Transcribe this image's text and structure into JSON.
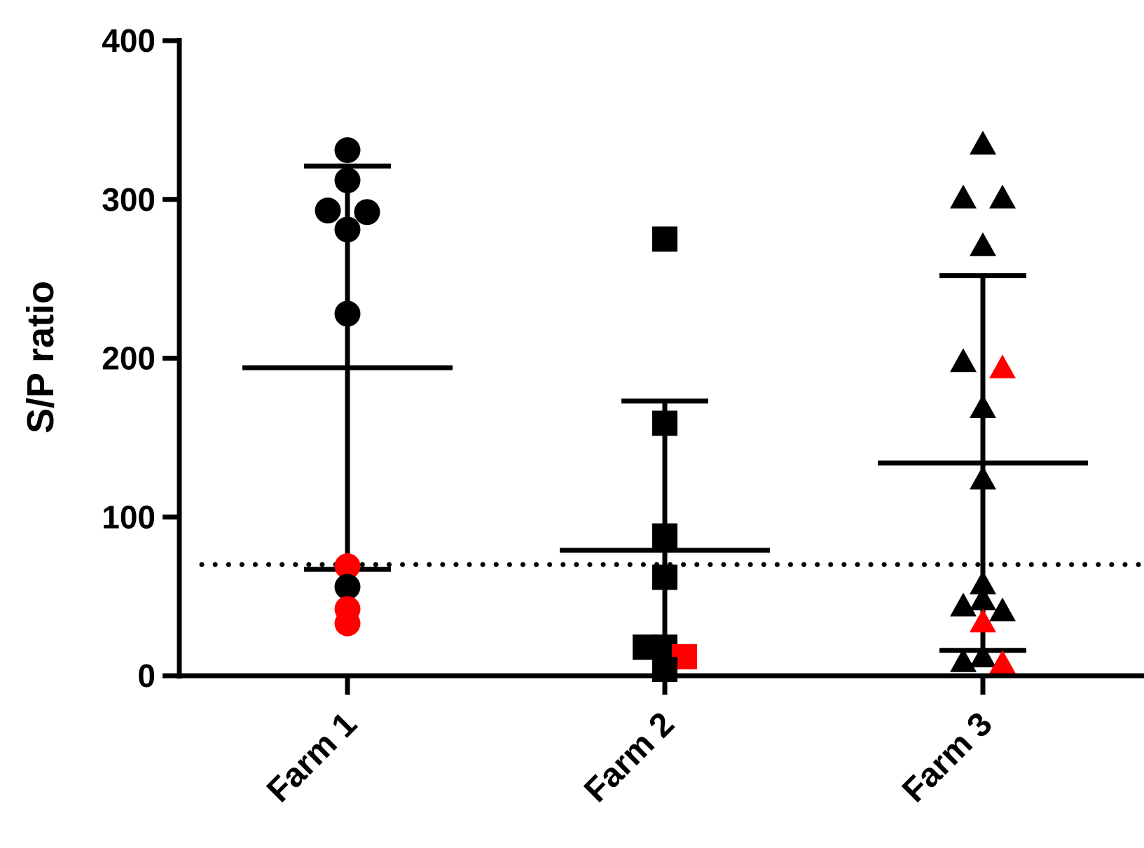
{
  "colors": {
    "axis": "#000000",
    "negative": "#000000",
    "positive": "#ff0000",
    "background": "#ffffff"
  },
  "chart_data": {
    "type": "scatter",
    "ylabel": "S/P ratio",
    "xlabel": "",
    "ylim": [
      0,
      400
    ],
    "yticks": [
      0,
      100,
      200,
      300,
      400
    ],
    "ytick_labels": [
      "0",
      "100",
      "200",
      "300",
      "400"
    ],
    "categories": [
      "Farm 1",
      "Farm 2",
      "Farm 3"
    ],
    "cutoff_line": {
      "y": 70,
      "style": "dotted"
    },
    "grid": false,
    "groups": [
      {
        "category": "Farm 1",
        "marker": "circle",
        "mean": 194,
        "sd_lower": 67,
        "sd_upper": 321,
        "points": [
          {
            "x": "Farm 1",
            "y": 331,
            "color": "black"
          },
          {
            "x": "Farm 1",
            "y": 312,
            "color": "black"
          },
          {
            "x": "Farm 1",
            "y": 292,
            "color": "black"
          },
          {
            "x": "Farm 1",
            "y": 293,
            "color": "black"
          },
          {
            "x": "Farm 1",
            "y": 281,
            "color": "black"
          },
          {
            "x": "Farm 1",
            "y": 228,
            "color": "black"
          },
          {
            "x": "Farm 1",
            "y": 69,
            "color": "red"
          },
          {
            "x": "Farm 1",
            "y": 56,
            "color": "black"
          },
          {
            "x": "Farm 1",
            "y": 42,
            "color": "red"
          },
          {
            "x": "Farm 1",
            "y": 33,
            "color": "red"
          }
        ]
      },
      {
        "category": "Farm 2",
        "marker": "square",
        "mean": 79,
        "sd_lower": 0,
        "sd_upper": 173,
        "points": [
          {
            "x": "Farm 2",
            "y": 275,
            "color": "black"
          },
          {
            "x": "Farm 2",
            "y": 159,
            "color": "black"
          },
          {
            "x": "Farm 2",
            "y": 88,
            "color": "black"
          },
          {
            "x": "Farm 2",
            "y": 62,
            "color": "black"
          },
          {
            "x": "Farm 2",
            "y": 18,
            "color": "black"
          },
          {
            "x": "Farm 2",
            "y": 18,
            "color": "black"
          },
          {
            "x": "Farm 2",
            "y": 12,
            "color": "red"
          },
          {
            "x": "Farm 2",
            "y": 4,
            "color": "black"
          }
        ]
      },
      {
        "category": "Farm 3",
        "marker": "triangle",
        "mean": 134,
        "sd_lower": 16,
        "sd_upper": 252,
        "points": [
          {
            "x": "Farm 3",
            "y": 334,
            "color": "black"
          },
          {
            "x": "Farm 3",
            "y": 300,
            "color": "black"
          },
          {
            "x": "Farm 3",
            "y": 300,
            "color": "black"
          },
          {
            "x": "Farm 3",
            "y": 270,
            "color": "black"
          },
          {
            "x": "Farm 3",
            "y": 197,
            "color": "black"
          },
          {
            "x": "Farm 3",
            "y": 193,
            "color": "red"
          },
          {
            "x": "Farm 3",
            "y": 168,
            "color": "black"
          },
          {
            "x": "Farm 3",
            "y": 123,
            "color": "black"
          },
          {
            "x": "Farm 3",
            "y": 57,
            "color": "black"
          },
          {
            "x": "Farm 3",
            "y": 47,
            "color": "black"
          },
          {
            "x": "Farm 3",
            "y": 43,
            "color": "black"
          },
          {
            "x": "Farm 3",
            "y": 40,
            "color": "black"
          },
          {
            "x": "Farm 3",
            "y": 33,
            "color": "red"
          },
          {
            "x": "Farm 3",
            "y": 11,
            "color": "black"
          },
          {
            "x": "Farm 3",
            "y": 8,
            "color": "black"
          },
          {
            "x": "Farm 3",
            "y": 7,
            "color": "red"
          }
        ]
      }
    ]
  }
}
